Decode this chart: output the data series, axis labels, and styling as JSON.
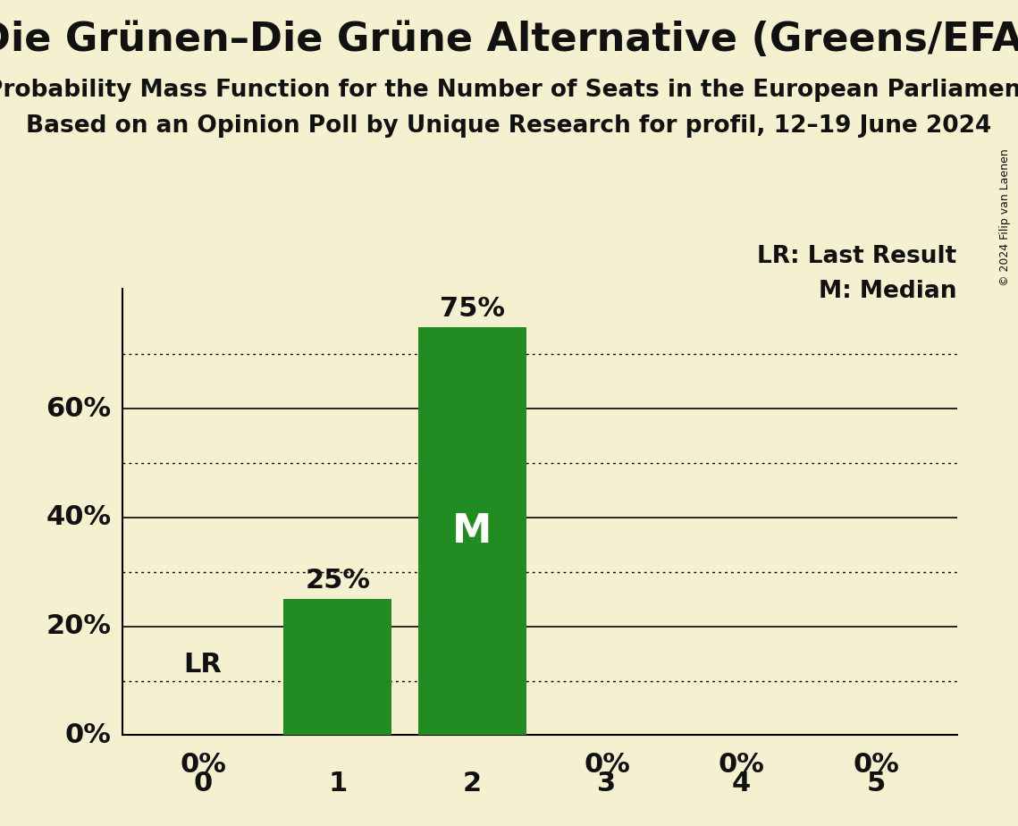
{
  "title": "Die Grünen–Die Grüne Alternative (Greens/EFA)",
  "subtitle1": "Probability Mass Function for the Number of Seats in the European Parliament",
  "subtitle2": "Based on an Opinion Poll by Unique Research for profil, 12–19 June 2024",
  "copyright": "© 2024 Filip van Laenen",
  "categories": [
    0,
    1,
    2,
    3,
    4,
    5
  ],
  "values": [
    0,
    25,
    75,
    0,
    0,
    0
  ],
  "bar_color": "#228B22",
  "background_color": "#f5f0d0",
  "text_color": "#111111",
  "lr_value": 10,
  "median_seat": 2,
  "ylim": [
    0,
    82
  ],
  "yticks_solid": [
    0,
    20,
    40,
    60
  ],
  "yticks_dotted": [
    10,
    30,
    50,
    70
  ],
  "title_fontsize": 32,
  "subtitle1_fontsize": 19,
  "subtitle2_fontsize": 19,
  "axis_label_fontsize": 22,
  "bar_label_fontsize": 22,
  "legend_fontsize": 19,
  "copyright_fontsize": 9,
  "median_fontsize": 32
}
